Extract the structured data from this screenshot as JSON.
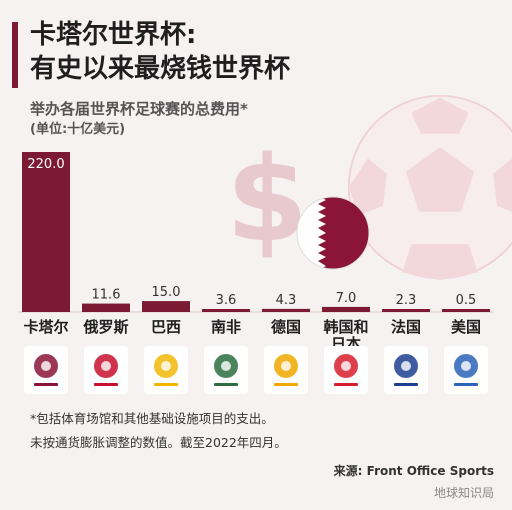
{
  "title": {
    "line1": "卡塔尔世界杯:",
    "line2": "有史以来最烧钱世界杯"
  },
  "subtitle": "举办各届世界杯足球赛的总费用*",
  "unit": "(单位:十亿美元)",
  "dollar_symbol": "$",
  "chart_data": {
    "type": "bar",
    "categories": [
      "卡塔尔",
      "俄罗斯",
      "巴西",
      "南非",
      "德国",
      "韩国和日本",
      "法国",
      "美国"
    ],
    "values": [
      220.0,
      11.6,
      15.0,
      3.6,
      4.3,
      7.0,
      2.3,
      0.5
    ],
    "value_labels": [
      "220.0",
      "11.6",
      "15.0",
      "3.6",
      "4.3",
      "7.0",
      "2.3",
      "0.5"
    ],
    "category_lines": [
      [
        "卡塔尔"
      ],
      [
        "俄罗斯"
      ],
      [
        "巴西"
      ],
      [
        "南非"
      ],
      [
        "德国"
      ],
      [
        "韩国和",
        "日本"
      ],
      [
        "法国"
      ],
      [
        "美国"
      ]
    ],
    "bar_color": "#7d1a33",
    "title": "举办各届世界杯足球赛的总费用*",
    "ylabel": "十亿美元"
  },
  "logos": [
    {
      "name": "qatar-2022-logo",
      "color": "#8a1538"
    },
    {
      "name": "russia-2018-logo",
      "color": "#c8102e"
    },
    {
      "name": "brazil-2014-logo",
      "color": "#f2b705"
    },
    {
      "name": "south-africa-2010-logo",
      "color": "#2c6e3f"
    },
    {
      "name": "germany-2006-logo",
      "color": "#f0a800"
    },
    {
      "name": "korea-japan-2002-logo",
      "color": "#d81e2c"
    },
    {
      "name": "france-98-logo",
      "color": "#1d3f8f"
    },
    {
      "name": "usa-94-logo",
      "color": "#2b63b8"
    }
  ],
  "notes": {
    "line1": "*包括体育场馆和其他基础设施项目的支出。",
    "line2": "未按通货膨胀调整的数值。截至2022年四月。"
  },
  "source": "来源: Front Office Sports",
  "watermark": "地球知识局"
}
